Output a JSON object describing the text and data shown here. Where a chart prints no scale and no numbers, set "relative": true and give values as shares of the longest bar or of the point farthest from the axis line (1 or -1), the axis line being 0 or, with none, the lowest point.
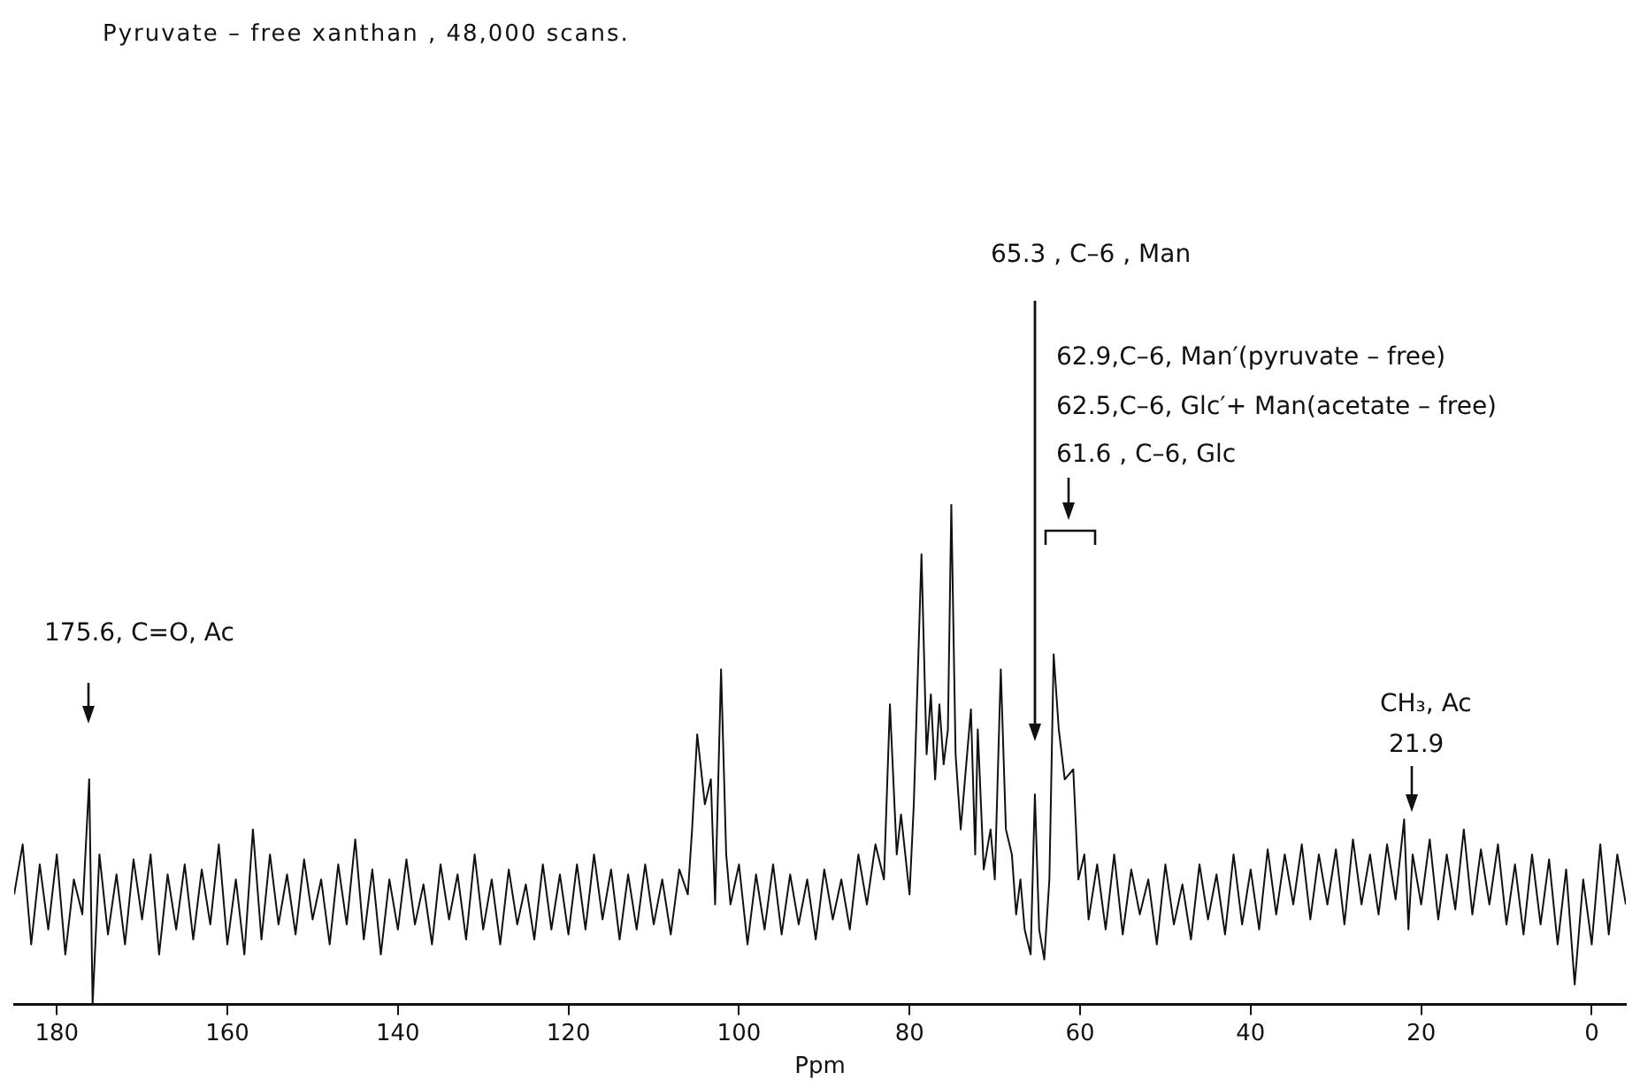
{
  "chart_data": {
    "type": "line",
    "title": "Pyruvate – free  xanthan , 48,000 scans.",
    "xlabel": "Ppm",
    "relative": true,
    "marker": "none",
    "color": "#111111",
    "xlim": [
      185,
      -4
    ],
    "xticks": [
      180,
      160,
      140,
      120,
      100,
      80,
      60,
      40,
      20,
      0
    ],
    "x": [
      185,
      184,
      183,
      182,
      181,
      180,
      179,
      178,
      177,
      176.2,
      175.8,
      175,
      174,
      173,
      172,
      171,
      170,
      169,
      168,
      167,
      166,
      165,
      164,
      163,
      162,
      161,
      160,
      159,
      158,
      157,
      156,
      155,
      154,
      153,
      152,
      151,
      150,
      149,
      148,
      147,
      146,
      145,
      144,
      143,
      142,
      141,
      140,
      139,
      138,
      137,
      136,
      135,
      134,
      133,
      132,
      131,
      130,
      129,
      128,
      127,
      126,
      125,
      124,
      123,
      122,
      121,
      120,
      119,
      118,
      117,
      116,
      115,
      114,
      113,
      112,
      111,
      110,
      109,
      108,
      107,
      106,
      105.5,
      104.9,
      104,
      103.3,
      102.8,
      102.1,
      101.5,
      101,
      100,
      99,
      98,
      97,
      96,
      95,
      94,
      93,
      92,
      91,
      90,
      89,
      88,
      87,
      86,
      85,
      84,
      83,
      82.3,
      81.5,
      81,
      80,
      79.5,
      78.6,
      78,
      77.5,
      77,
      76.5,
      76,
      75.5,
      75.1,
      74.6,
      74,
      73.5,
      72.8,
      72.3,
      72,
      71.3,
      70.5,
      70,
      69.3,
      68.7,
      68,
      67.5,
      67,
      66.5,
      65.8,
      65.3,
      64.8,
      64.2,
      63.6,
      63.1,
      62.5,
      61.8,
      60.8,
      60.2,
      59.5,
      59,
      58,
      57,
      56,
      55,
      54,
      53,
      52,
      51,
      50,
      49,
      48,
      47,
      46,
      45,
      44,
      43,
      42,
      41,
      40,
      39,
      38,
      37,
      36,
      35,
      34,
      33,
      32,
      31,
      30,
      29,
      28,
      27,
      26,
      25,
      24,
      23,
      22,
      21.5,
      21,
      20,
      19,
      18,
      17,
      16,
      15,
      14,
      13,
      12,
      11,
      10,
      9,
      8,
      7,
      6,
      5,
      4,
      3,
      2,
      1,
      0,
      -1,
      -2,
      -3,
      -4
    ],
    "values": [
      0.22,
      0.32,
      0.12,
      0.28,
      0.15,
      0.3,
      0.1,
      0.25,
      0.18,
      0.45,
      0,
      0.3,
      0.14,
      0.26,
      0.12,
      0.29,
      0.17,
      0.3,
      0.1,
      0.26,
      0.15,
      0.28,
      0.13,
      0.27,
      0.16,
      0.32,
      0.12,
      0.25,
      0.1,
      0.35,
      0.13,
      0.3,
      0.16,
      0.26,
      0.14,
      0.29,
      0.17,
      0.25,
      0.12,
      0.28,
      0.16,
      0.33,
      0.13,
      0.27,
      0.1,
      0.25,
      0.15,
      0.29,
      0.16,
      0.24,
      0.12,
      0.28,
      0.17,
      0.26,
      0.13,
      0.3,
      0.15,
      0.25,
      0.12,
      0.27,
      0.16,
      0.24,
      0.13,
      0.28,
      0.15,
      0.26,
      0.14,
      0.28,
      0.15,
      0.3,
      0.17,
      0.27,
      0.13,
      0.26,
      0.15,
      0.28,
      0.16,
      0.25,
      0.14,
      0.27,
      0.22,
      0.35,
      0.54,
      0.4,
      0.45,
      0.2,
      0.67,
      0.3,
      0.2,
      0.28,
      0.12,
      0.26,
      0.15,
      0.28,
      0.14,
      0.26,
      0.16,
      0.25,
      0.13,
      0.27,
      0.17,
      0.25,
      0.15,
      0.3,
      0.2,
      0.32,
      0.25,
      0.6,
      0.3,
      0.38,
      0.22,
      0.4,
      0.9,
      0.5,
      0.62,
      0.45,
      0.6,
      0.48,
      0.55,
      1,
      0.5,
      0.35,
      0.45,
      0.59,
      0.3,
      0.55,
      0.27,
      0.35,
      0.25,
      0.67,
      0.35,
      0.3,
      0.18,
      0.25,
      0.15,
      0.1,
      0.42,
      0.15,
      0.09,
      0.25,
      0.7,
      0.55,
      0.45,
      0.47,
      0.25,
      0.3,
      0.17,
      0.28,
      0.15,
      0.3,
      0.14,
      0.27,
      0.18,
      0.25,
      0.12,
      0.28,
      0.16,
      0.24,
      0.13,
      0.28,
      0.17,
      0.26,
      0.14,
      0.3,
      0.16,
      0.27,
      0.15,
      0.31,
      0.18,
      0.3,
      0.2,
      0.32,
      0.17,
      0.3,
      0.2,
      0.31,
      0.16,
      0.33,
      0.2,
      0.3,
      0.18,
      0.32,
      0.21,
      0.37,
      0.15,
      0.3,
      0.2,
      0.33,
      0.17,
      0.3,
      0.19,
      0.35,
      0.18,
      0.31,
      0.2,
      0.32,
      0.16,
      0.28,
      0.14,
      0.3,
      0.16,
      0.29,
      0.12,
      0.27,
      0.04,
      0.25,
      0.12,
      0.32,
      0.14,
      0.3,
      0.2
    ],
    "annotations": [
      "175.6, C=O, Ac",
      "65.3 , C–6 , Man",
      "62.9,C–6, Man′(pyruvate – free)",
      "62.5,C–6, Glc′+ Man(acetate – free)",
      "61.6 , C–6, Glc",
      "CH₃, Ac",
      "21.9"
    ]
  }
}
